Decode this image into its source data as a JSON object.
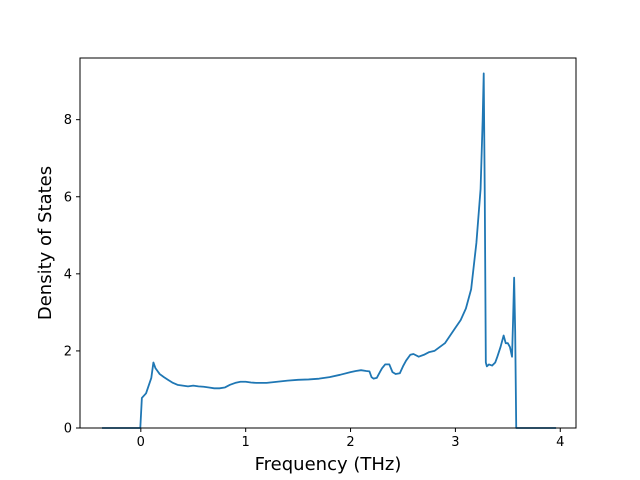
{
  "chart_data": {
    "type": "line",
    "title": "",
    "xlabel": "Frequency (THz)",
    "ylabel": "Density of States",
    "xlim": [
      -0.58,
      4.15
    ],
    "ylim": [
      0,
      9.6
    ],
    "xticks": [
      0,
      1,
      2,
      3,
      4
    ],
    "yticks": [
      0,
      2,
      4,
      6,
      8
    ],
    "grid": false,
    "line_color": "#1f77b4",
    "series": [
      {
        "x": [
          -0.37,
          -0.02,
          -0.005,
          0.01,
          0.05,
          0.1,
          0.12,
          0.14,
          0.18,
          0.22,
          0.26,
          0.3,
          0.35,
          0.4,
          0.45,
          0.5,
          0.55,
          0.6,
          0.65,
          0.7,
          0.75,
          0.8,
          0.85,
          0.9,
          0.95,
          1.0,
          1.05,
          1.1,
          1.2,
          1.3,
          1.4,
          1.5,
          1.6,
          1.7,
          1.8,
          1.9,
          2.0,
          2.05,
          2.1,
          2.15,
          2.18,
          2.2,
          2.22,
          2.25,
          2.28,
          2.3,
          2.33,
          2.37,
          2.4,
          2.43,
          2.47,
          2.5,
          2.53,
          2.57,
          2.6,
          2.65,
          2.7,
          2.75,
          2.8,
          2.85,
          2.9,
          2.95,
          3.0,
          3.05,
          3.1,
          3.15,
          3.2,
          3.24,
          3.26,
          3.27,
          3.28,
          3.29,
          3.3,
          3.32,
          3.35,
          3.38,
          3.4,
          3.43,
          3.46,
          3.48,
          3.5,
          3.52,
          3.54,
          3.55,
          3.56,
          3.57,
          3.58,
          3.59,
          3.6,
          3.62,
          3.96
        ],
        "y": [
          0.0,
          0.0,
          0.0,
          0.78,
          0.9,
          1.3,
          1.7,
          1.55,
          1.4,
          1.32,
          1.25,
          1.18,
          1.12,
          1.1,
          1.08,
          1.1,
          1.08,
          1.07,
          1.05,
          1.03,
          1.03,
          1.05,
          1.12,
          1.17,
          1.2,
          1.2,
          1.18,
          1.17,
          1.17,
          1.2,
          1.23,
          1.25,
          1.26,
          1.28,
          1.32,
          1.38,
          1.45,
          1.48,
          1.5,
          1.48,
          1.47,
          1.32,
          1.28,
          1.3,
          1.45,
          1.55,
          1.65,
          1.65,
          1.45,
          1.4,
          1.42,
          1.6,
          1.75,
          1.9,
          1.92,
          1.85,
          1.9,
          1.97,
          2.0,
          2.1,
          2.2,
          2.4,
          2.6,
          2.8,
          3.1,
          3.6,
          4.8,
          6.2,
          8.0,
          9.2,
          6.0,
          1.7,
          1.6,
          1.65,
          1.62,
          1.7,
          1.85,
          2.1,
          2.4,
          2.2,
          2.2,
          2.1,
          1.85,
          2.8,
          3.9,
          2.5,
          0.0,
          0.0,
          0.0,
          0.0,
          0.0
        ]
      }
    ]
  }
}
